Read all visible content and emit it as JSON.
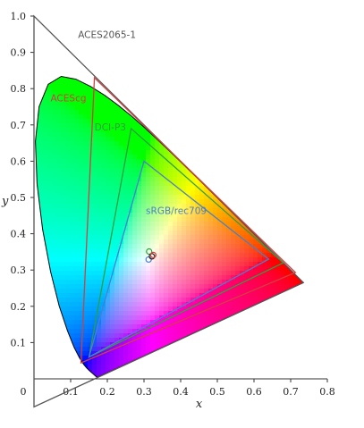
{
  "chart_data": {
    "type": "scatter",
    "title": "",
    "xlabel": "x",
    "ylabel": "y",
    "xlim": [
      0,
      0.8
    ],
    "ylim": [
      0,
      1.0
    ],
    "x_ticks": [
      "0",
      "0.1",
      "0.2",
      "0.3",
      "0.4",
      "0.5",
      "0.6",
      "0.7",
      "0.8"
    ],
    "y_ticks": [
      "0.1",
      "0.2",
      "0.3",
      "0.4",
      "0.5",
      "0.6",
      "0.7",
      "0.8",
      "0.9",
      "1.0"
    ],
    "spectral_locus": [
      [
        0.1741,
        0.005
      ],
      [
        0.1738,
        0.0049
      ],
      [
        0.1736,
        0.0049
      ],
      [
        0.1733,
        0.0048
      ],
      [
        0.173,
        0.0048
      ],
      [
        0.1726,
        0.0048
      ],
      [
        0.1721,
        0.0048
      ],
      [
        0.1714,
        0.0051
      ],
      [
        0.1703,
        0.0058
      ],
      [
        0.1689,
        0.0069
      ],
      [
        0.1669,
        0.0086
      ],
      [
        0.1644,
        0.0109
      ],
      [
        0.1611,
        0.0138
      ],
      [
        0.1566,
        0.0177
      ],
      [
        0.151,
        0.0227
      ],
      [
        0.144,
        0.0297
      ],
      [
        0.1355,
        0.0399
      ],
      [
        0.1241,
        0.0578
      ],
      [
        0.1096,
        0.0868
      ],
      [
        0.0913,
        0.1327
      ],
      [
        0.0687,
        0.2007
      ],
      [
        0.0454,
        0.295
      ],
      [
        0.0235,
        0.4127
      ],
      [
        0.0082,
        0.5384
      ],
      [
        0.0039,
        0.6548
      ],
      [
        0.0139,
        0.7502
      ],
      [
        0.0389,
        0.812
      ],
      [
        0.0743,
        0.8338
      ],
      [
        0.1142,
        0.8262
      ],
      [
        0.1547,
        0.8059
      ],
      [
        0.1929,
        0.7816
      ],
      [
        0.2296,
        0.7543
      ],
      [
        0.2658,
        0.7243
      ],
      [
        0.3016,
        0.6923
      ],
      [
        0.3373,
        0.6589
      ],
      [
        0.3731,
        0.6245
      ],
      [
        0.4087,
        0.5896
      ],
      [
        0.4441,
        0.5547
      ],
      [
        0.4788,
        0.5202
      ],
      [
        0.5125,
        0.4866
      ],
      [
        0.5448,
        0.4544
      ],
      [
        0.5752,
        0.4242
      ],
      [
        0.6029,
        0.3965
      ],
      [
        0.627,
        0.3725
      ],
      [
        0.6482,
        0.3514
      ],
      [
        0.6658,
        0.334
      ],
      [
        0.6801,
        0.3197
      ],
      [
        0.6915,
        0.3083
      ],
      [
        0.7006,
        0.2993
      ],
      [
        0.7079,
        0.292
      ],
      [
        0.714,
        0.2859
      ],
      [
        0.719,
        0.2809
      ],
      [
        0.723,
        0.277
      ],
      [
        0.726,
        0.274
      ],
      [
        0.7283,
        0.2717
      ],
      [
        0.73,
        0.27
      ],
      [
        0.7311,
        0.2689
      ],
      [
        0.732,
        0.268
      ],
      [
        0.7327,
        0.2673
      ],
      [
        0.7334,
        0.2666
      ],
      [
        0.734,
        0.266
      ],
      [
        0.7344,
        0.2656
      ],
      [
        0.7346,
        0.2654
      ],
      [
        0.7347,
        0.2653
      ]
    ],
    "gamuts": [
      {
        "name": "ACES2065-1",
        "color": "#555555",
        "points": [
          [
            0.7347,
            0.2653
          ],
          [
            0.0,
            1.0
          ],
          [
            0.0001,
            -0.077
          ]
        ]
      },
      {
        "name": "ACEScg",
        "color": "#d04040",
        "points": [
          [
            0.713,
            0.293
          ],
          [
            0.165,
            0.83
          ],
          [
            0.128,
            0.044
          ]
        ]
      },
      {
        "name": "DCI-P3",
        "color": "#2e9e3e",
        "points": [
          [
            0.68,
            0.32
          ],
          [
            0.265,
            0.69
          ],
          [
            0.15,
            0.06
          ]
        ]
      },
      {
        "name": "sRGB/rec709",
        "color": "#4a7fd0",
        "points": [
          [
            0.64,
            0.33
          ],
          [
            0.3,
            0.6
          ],
          [
            0.15,
            0.06
          ]
        ]
      }
    ],
    "white_points": [
      {
        "x": 0.3127,
        "y": 0.329,
        "color": "#4a7fd0"
      },
      {
        "x": 0.314,
        "y": 0.351,
        "color": "#2e9e3e"
      },
      {
        "x": 0.32168,
        "y": 0.33767,
        "color": "#222222"
      },
      {
        "x": 0.32168,
        "y": 0.33767,
        "color": "#d04040"
      }
    ]
  }
}
